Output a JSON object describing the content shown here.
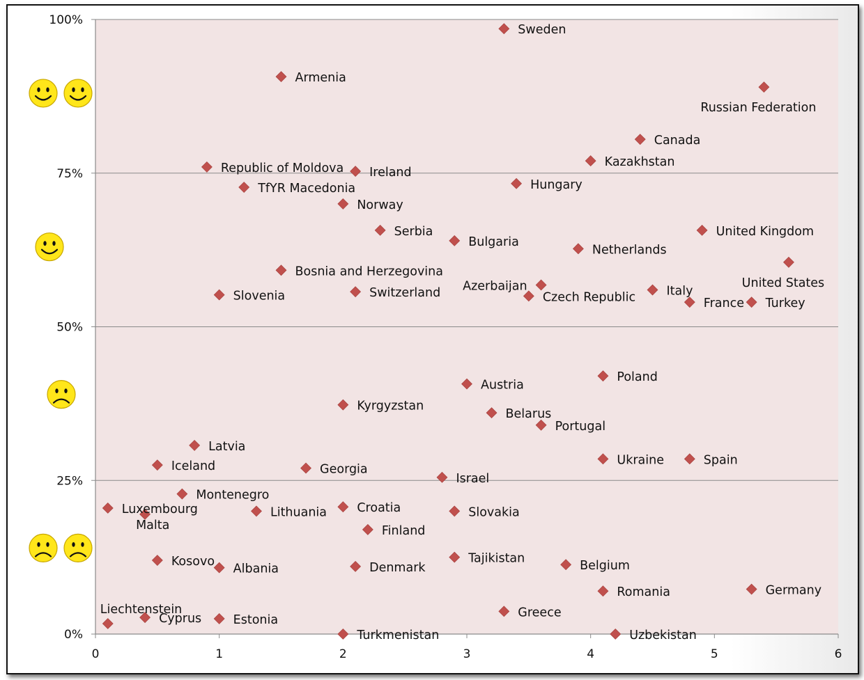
{
  "chart_data": {
    "type": "scatter",
    "title": "",
    "xlabel": "",
    "ylabel": "",
    "xlim": [
      0,
      6
    ],
    "ylim": [
      0,
      100
    ],
    "x_ticks": [
      0,
      1,
      2,
      3,
      4,
      5,
      6
    ],
    "y_ticks": [
      0,
      25,
      50,
      75,
      100
    ],
    "y_tick_labels": [
      "0%",
      "25%",
      "50%",
      "75%",
      "100%"
    ],
    "grid": "horizontal",
    "plot_background": "#f2e4e4",
    "marker_color": "#c0504d",
    "marker_shape": "diamond",
    "mood_icons": [
      {
        "name": "very-happy",
        "y": 88,
        "count": 2,
        "mood": "happy"
      },
      {
        "name": "happy",
        "y": 63,
        "count": 1,
        "mood": "happy"
      },
      {
        "name": "sad",
        "y": 39,
        "count": 1,
        "mood": "sad"
      },
      {
        "name": "very-sad",
        "y": 14,
        "count": 2,
        "mood": "sad"
      }
    ],
    "points": [
      {
        "label": "Sweden",
        "x": 3.3,
        "y": 98.5,
        "pos": "right"
      },
      {
        "label": "Armenia",
        "x": 1.5,
        "y": 90.7,
        "pos": "right"
      },
      {
        "label": "Russian Federation",
        "x": 5.4,
        "y": 89.0,
        "pos": "below-center"
      },
      {
        "label": "Canada",
        "x": 4.4,
        "y": 80.5,
        "pos": "right"
      },
      {
        "label": "Kazakhstan",
        "x": 4.0,
        "y": 77.0,
        "pos": "right"
      },
      {
        "label": "Republic of Moldova",
        "x": 0.9,
        "y": 76.0,
        "pos": "right"
      },
      {
        "label": "Ireland",
        "x": 2.1,
        "y": 75.3,
        "pos": "right"
      },
      {
        "label": "Hungary",
        "x": 3.4,
        "y": 73.3,
        "pos": "right"
      },
      {
        "label": "TfYR Macedonia",
        "x": 1.2,
        "y": 72.7,
        "pos": "right"
      },
      {
        "label": "Norway",
        "x": 2.0,
        "y": 70.0,
        "pos": "right"
      },
      {
        "label": "Serbia",
        "x": 2.3,
        "y": 65.7,
        "pos": "right"
      },
      {
        "label": "United Kingdom",
        "x": 4.9,
        "y": 65.7,
        "pos": "right"
      },
      {
        "label": "Bulgaria",
        "x": 2.9,
        "y": 64.0,
        "pos": "right"
      },
      {
        "label": "Netherlands",
        "x": 3.9,
        "y": 62.7,
        "pos": "right"
      },
      {
        "label": "United States",
        "x": 5.6,
        "y": 60.5,
        "pos": "below-center"
      },
      {
        "label": "Bosnia and Herzegovina",
        "x": 1.5,
        "y": 59.2,
        "pos": "right"
      },
      {
        "label": "Azerbaijan",
        "x": 3.6,
        "y": 56.8,
        "pos": "left"
      },
      {
        "label": "Italy",
        "x": 4.5,
        "y": 56.0,
        "pos": "right"
      },
      {
        "label": "Switzerland",
        "x": 2.1,
        "y": 55.7,
        "pos": "right"
      },
      {
        "label": "Slovenia",
        "x": 1.0,
        "y": 55.2,
        "pos": "right"
      },
      {
        "label": "Czech Republic",
        "x": 3.5,
        "y": 55.0,
        "pos": "right"
      },
      {
        "label": "France",
        "x": 4.8,
        "y": 54.0,
        "pos": "right"
      },
      {
        "label": "Turkey",
        "x": 5.3,
        "y": 54.0,
        "pos": "right"
      },
      {
        "label": "Poland",
        "x": 4.1,
        "y": 42.0,
        "pos": "right"
      },
      {
        "label": "Austria",
        "x": 3.0,
        "y": 40.7,
        "pos": "right"
      },
      {
        "label": "Kyrgyzstan",
        "x": 2.0,
        "y": 37.3,
        "pos": "right"
      },
      {
        "label": "Belarus",
        "x": 3.2,
        "y": 36.0,
        "pos": "right"
      },
      {
        "label": "Portugal",
        "x": 3.6,
        "y": 34.0,
        "pos": "right"
      },
      {
        "label": "Latvia",
        "x": 0.8,
        "y": 30.7,
        "pos": "right"
      },
      {
        "label": "Ukraine",
        "x": 4.1,
        "y": 28.5,
        "pos": "right"
      },
      {
        "label": "Spain",
        "x": 4.8,
        "y": 28.5,
        "pos": "right"
      },
      {
        "label": "Iceland",
        "x": 0.5,
        "y": 27.5,
        "pos": "right"
      },
      {
        "label": "Georgia",
        "x": 1.7,
        "y": 27.0,
        "pos": "right"
      },
      {
        "label": "Israel",
        "x": 2.8,
        "y": 25.5,
        "pos": "right"
      },
      {
        "label": "Montenegro",
        "x": 0.7,
        "y": 22.8,
        "pos": "right"
      },
      {
        "label": "Luxembourg",
        "x": 0.1,
        "y": 20.5,
        "pos": "right"
      },
      {
        "label": "Croatia",
        "x": 2.0,
        "y": 20.7,
        "pos": "right"
      },
      {
        "label": "Lithuania",
        "x": 1.3,
        "y": 20.0,
        "pos": "right"
      },
      {
        "label": "Slovakia",
        "x": 2.9,
        "y": 20.0,
        "pos": "right"
      },
      {
        "label": "Malta",
        "x": 0.4,
        "y": 19.5,
        "pos": "below-right"
      },
      {
        "label": "Finland",
        "x": 2.2,
        "y": 17.0,
        "pos": "right"
      },
      {
        "label": "Tajikistan",
        "x": 2.9,
        "y": 12.5,
        "pos": "right"
      },
      {
        "label": "Kosovo",
        "x": 0.5,
        "y": 12.0,
        "pos": "right"
      },
      {
        "label": "Belgium",
        "x": 3.8,
        "y": 11.3,
        "pos": "right"
      },
      {
        "label": "Denmark",
        "x": 2.1,
        "y": 11.0,
        "pos": "right"
      },
      {
        "label": "Albania",
        "x": 1.0,
        "y": 10.8,
        "pos": "right"
      },
      {
        "label": "Germany",
        "x": 5.3,
        "y": 7.3,
        "pos": "right"
      },
      {
        "label": "Romania",
        "x": 4.1,
        "y": 7.0,
        "pos": "right"
      },
      {
        "label": "Greece",
        "x": 3.3,
        "y": 3.7,
        "pos": "right"
      },
      {
        "label": "Cyprus",
        "x": 0.4,
        "y": 2.7,
        "pos": "right"
      },
      {
        "label": "Estonia",
        "x": 1.0,
        "y": 2.5,
        "pos": "right"
      },
      {
        "label": "Liechtenstein",
        "x": 0.1,
        "y": 1.7,
        "pos": "above"
      },
      {
        "label": "Turkmenistan",
        "x": 2.0,
        "y": 0.0,
        "pos": "right"
      },
      {
        "label": "Uzbekistan",
        "x": 4.2,
        "y": 0.0,
        "pos": "right"
      }
    ]
  }
}
